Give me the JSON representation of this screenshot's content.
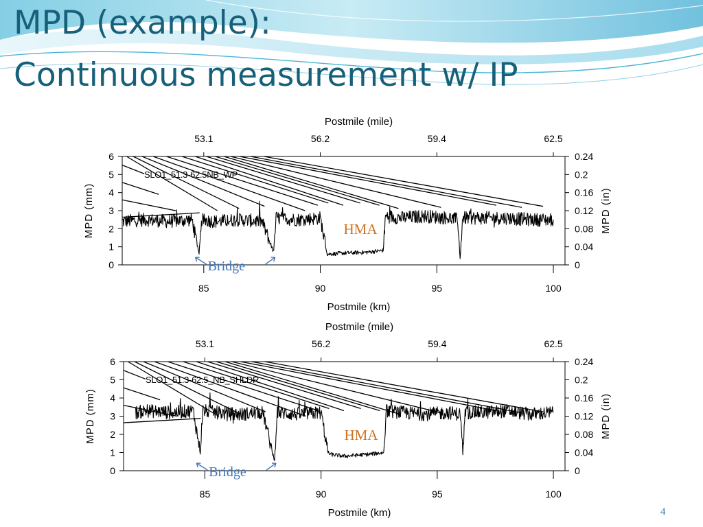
{
  "slide": {
    "title_line1": "MPD (example):",
    "title_line2": "Continuous measurement w/ IP",
    "page_number": "4"
  },
  "colors": {
    "title": "#17607a",
    "hma": "#d0701e",
    "bridge": "#3f74b8",
    "wave": "#49b5d6"
  },
  "chart_data": [
    {
      "type": "line",
      "name": "SLO1_51.3-62.5NB_WP",
      "top_axis_label": "Postmile (mile)",
      "top_ticks": [
        "53.1",
        "56.2",
        "59.4",
        "62.5"
      ],
      "xlabel": "Postmile (km)",
      "x_ticks": [
        85,
        90,
        95,
        100
      ],
      "xlim": [
        81.5,
        100.5
      ],
      "ylabel_left": "MPD (mm)",
      "y_ticks_left": [
        0,
        1,
        2,
        3,
        4,
        5,
        6
      ],
      "ylim": [
        0,
        6
      ],
      "ylabel_right": "MPD (in)",
      "y_ticks_right": [
        "0",
        "0.04",
        "0.08",
        "0.12",
        "0.16",
        "0.2",
        "0.24"
      ],
      "annotations": {
        "hma": "HMA",
        "bridge": "Bridge"
      },
      "series": [
        {
          "x": [
            81.5,
            82.5,
            83.5,
            84.5,
            84.8,
            84.9,
            85.5,
            86.5,
            87.5,
            88.0,
            88.1,
            89.0,
            90.0,
            90.3,
            90.4,
            91.0,
            92.0,
            92.7,
            92.8,
            93.5,
            94.5,
            95.5,
            95.9,
            96.0,
            96.1,
            97.0,
            98.0,
            99.0,
            100.0
          ],
          "y": [
            2.4,
            2.5,
            2.4,
            2.5,
            0.6,
            2.5,
            2.4,
            2.5,
            2.4,
            0.7,
            2.6,
            2.5,
            2.6,
            0.6,
            0.6,
            0.65,
            0.7,
            0.8,
            2.7,
            2.6,
            2.7,
            2.6,
            2.5,
            0.3,
            2.6,
            2.6,
            2.6,
            2.5,
            2.5
          ]
        }
      ]
    },
    {
      "type": "line",
      "name": "SLO1_51.3-62.5_NB_SHLDR",
      "top_axis_label": "Postmile (mile)",
      "top_ticks": [
        "53.1",
        "56.2",
        "59.4",
        "62.5"
      ],
      "xlabel": "Postmile (km)",
      "x_ticks": [
        85,
        90,
        95,
        100
      ],
      "xlim": [
        81.5,
        100.5
      ],
      "ylabel_left": "MPD (mm)",
      "y_ticks_left": [
        0,
        1,
        2,
        3,
        4,
        5,
        6
      ],
      "ylim": [
        0,
        6
      ],
      "ylabel_right": "MPD (in)",
      "y_ticks_right": [
        "0",
        "0.04",
        "0.08",
        "0.12",
        "0.16",
        "0.2",
        "0.24"
      ],
      "annotations": {
        "hma": "HMA",
        "bridge": "Bridge"
      },
      "series": [
        {
          "x": [
            82.0,
            82.5,
            83.5,
            84.5,
            84.8,
            84.9,
            85.5,
            86.5,
            87.5,
            88.0,
            88.1,
            89.0,
            90.0,
            90.3,
            90.4,
            91.0,
            92.0,
            92.7,
            92.8,
            93.5,
            94.5,
            95.5,
            96.0,
            96.1,
            96.2,
            97.0,
            98.0,
            99.0,
            100.0
          ],
          "y": [
            3.2,
            3.3,
            3.2,
            3.3,
            1.0,
            3.3,
            3.2,
            3.1,
            3.2,
            0.5,
            3.2,
            3.1,
            3.2,
            1.0,
            0.9,
            0.8,
            0.9,
            1.0,
            3.3,
            3.2,
            3.1,
            3.2,
            3.1,
            0.8,
            3.2,
            3.2,
            3.3,
            3.1,
            3.2
          ]
        }
      ]
    }
  ]
}
